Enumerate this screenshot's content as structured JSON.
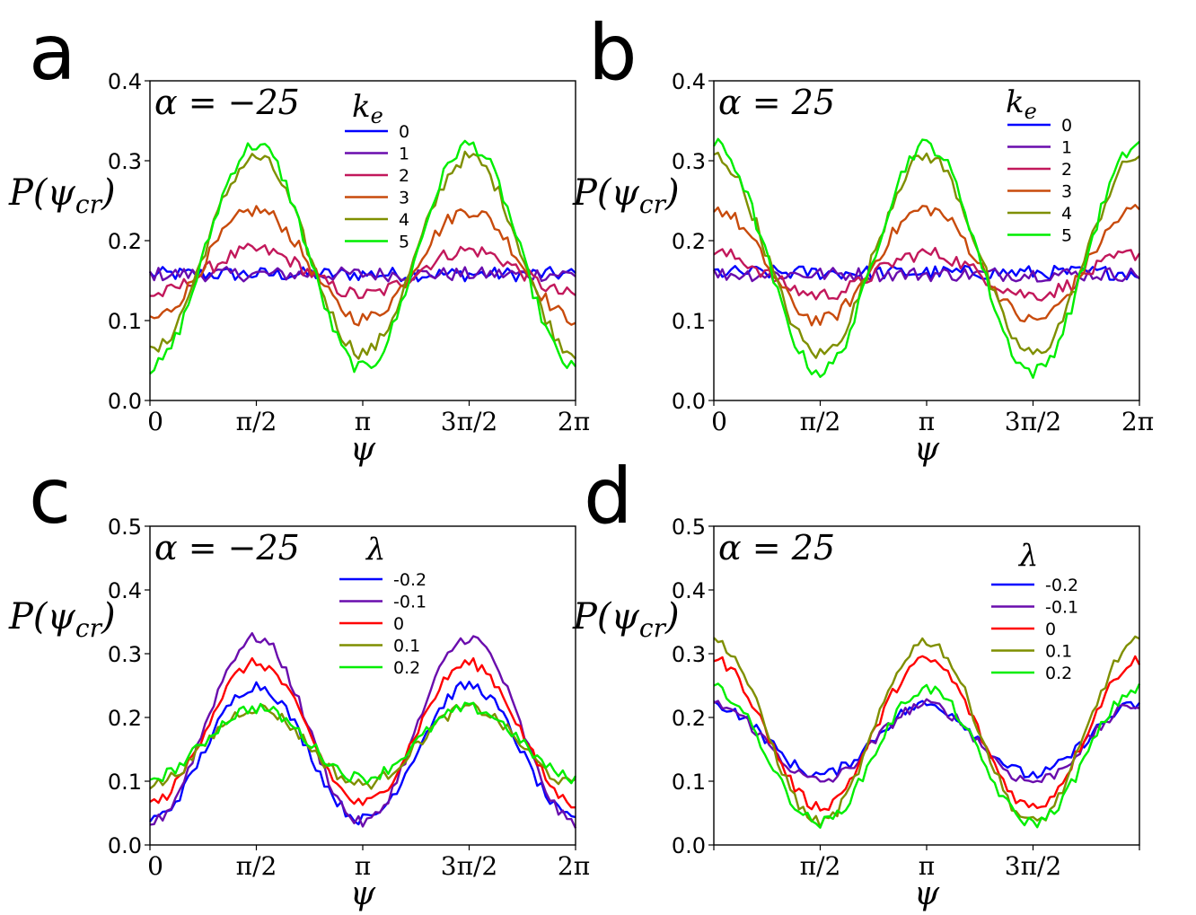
{
  "figure": {
    "xtick_labels": [
      "0",
      "π/2",
      "π",
      "3π/2",
      "2π"
    ],
    "xlabel": "ψ",
    "ylabel": "P(ψ_cr)"
  },
  "chart_data": [
    {
      "panel": "a",
      "type": "line",
      "annotation": "α = −25",
      "legend_title": "k_e",
      "xlabel": "ψ",
      "ylabel": "P(ψ_cr)",
      "xlim": [
        0,
        6.2832
      ],
      "ylim": [
        0,
        0.4
      ],
      "yticks": [
        0.0,
        0.1,
        0.2,
        0.3,
        0.4
      ],
      "ytick_labels": [
        "0.0",
        "0.1",
        "0.2",
        "0.3",
        "0.4"
      ],
      "xtick_labels": [
        "0",
        "π/2",
        "π",
        "3π/2",
        "2π"
      ],
      "series": [
        {
          "name": "0",
          "color": "#0000ff",
          "mean": 0.158,
          "amp": 0.0,
          "phase": 0
        },
        {
          "name": "1",
          "color": "#6a0dad",
          "mean": 0.158,
          "amp": 0.0,
          "phase": 0
        },
        {
          "name": "2",
          "color": "#c2185b",
          "mean": 0.16,
          "amp": 0.028,
          "phase": 0
        },
        {
          "name": "3",
          "color": "#c84b0c",
          "mean": 0.17,
          "amp": 0.068,
          "phase": 0
        },
        {
          "name": "4",
          "color": "#7f8f00",
          "mean": 0.182,
          "amp": 0.122,
          "phase": 0
        },
        {
          "name": "5",
          "color": "#00ee00",
          "mean": 0.18,
          "amp": 0.14,
          "phase": 0
        }
      ]
    },
    {
      "panel": "b",
      "type": "line",
      "annotation": "α = 25",
      "legend_title": "k_e",
      "xlabel": "ψ",
      "ylabel": "P(ψ_cr)",
      "xlim": [
        0,
        6.2832
      ],
      "ylim": [
        0,
        0.4
      ],
      "yticks": [
        0.0,
        0.1,
        0.2,
        0.3,
        0.4
      ],
      "ytick_labels": [
        "0.0",
        "0.1",
        "0.2",
        "0.3",
        "0.4"
      ],
      "xtick_labels": [
        "0",
        "π/2",
        "π",
        "3π/2",
        "2π"
      ],
      "series": [
        {
          "name": "0",
          "color": "#0000ff",
          "mean": 0.16,
          "amp": 0.0,
          "phase": 1
        },
        {
          "name": "1",
          "color": "#6a0dad",
          "mean": 0.158,
          "amp": 0.0,
          "phase": 1
        },
        {
          "name": "2",
          "color": "#c2185b",
          "mean": 0.158,
          "amp": 0.026,
          "phase": 1
        },
        {
          "name": "3",
          "color": "#c84b0c",
          "mean": 0.17,
          "amp": 0.07,
          "phase": 1
        },
        {
          "name": "4",
          "color": "#7f8f00",
          "mean": 0.182,
          "amp": 0.124,
          "phase": 1
        },
        {
          "name": "5",
          "color": "#00ee00",
          "mean": 0.178,
          "amp": 0.142,
          "phase": 1
        }
      ]
    },
    {
      "panel": "c",
      "type": "line",
      "annotation": "α = −25",
      "legend_title": "λ",
      "xlabel": "ψ",
      "ylabel": "P(ψ_cr)",
      "xlim": [
        0,
        6.2832
      ],
      "ylim": [
        0,
        0.5
      ],
      "yticks": [
        0.0,
        0.1,
        0.2,
        0.3,
        0.4,
        0.5
      ],
      "ytick_labels": [
        "0.0",
        "0.1",
        "0.2",
        "0.3",
        "0.4",
        "0.5"
      ],
      "xtick_labels": [
        "0",
        "π/2",
        "π",
        "3π/2",
        "2π"
      ],
      "series": [
        {
          "name": "-0.2",
          "color": "#0000ff",
          "mean": 0.145,
          "amp": 0.105,
          "phase": 0
        },
        {
          "name": "-0.1",
          "color": "#6a0dad",
          "mean": 0.18,
          "amp": 0.145,
          "phase": 0
        },
        {
          "name": "0",
          "color": "#ff0000",
          "mean": 0.175,
          "amp": 0.11,
          "phase": 0
        },
        {
          "name": "0.1",
          "color": "#7f8f00",
          "mean": 0.155,
          "amp": 0.06,
          "phase": 0
        },
        {
          "name": "0.2",
          "color": "#00ee00",
          "mean": 0.16,
          "amp": 0.055,
          "phase": 0
        }
      ]
    },
    {
      "panel": "d",
      "type": "line",
      "annotation": "α = 25",
      "legend_title": "λ",
      "xlabel": "ψ",
      "ylabel": "P(ψ_cr)",
      "xlim": [
        0,
        6.2832
      ],
      "ylim": [
        0,
        0.5
      ],
      "yticks": [
        0.0,
        0.1,
        0.2,
        0.3,
        0.4,
        0.5
      ],
      "ytick_labels": [
        "0.0",
        "0.1",
        "0.2",
        "0.3",
        "0.4",
        "0.5"
      ],
      "xtick_labels": [
        "",
        "π/2",
        "π",
        "3π/2",
        ""
      ],
      "series": [
        {
          "name": "-0.2",
          "color": "#0000ff",
          "mean": 0.165,
          "amp": 0.055,
          "phase": 1
        },
        {
          "name": "-0.1",
          "color": "#6a0dad",
          "mean": 0.16,
          "amp": 0.06,
          "phase": 1
        },
        {
          "name": "0",
          "color": "#ff0000",
          "mean": 0.175,
          "amp": 0.115,
          "phase": 1
        },
        {
          "name": "0.1",
          "color": "#7f8f00",
          "mean": 0.178,
          "amp": 0.142,
          "phase": 1
        },
        {
          "name": "0.2",
          "color": "#00ee00",
          "mean": 0.14,
          "amp": 0.105,
          "phase": 1
        }
      ]
    }
  ],
  "panel_labels": [
    "a",
    "b",
    "c",
    "d"
  ]
}
